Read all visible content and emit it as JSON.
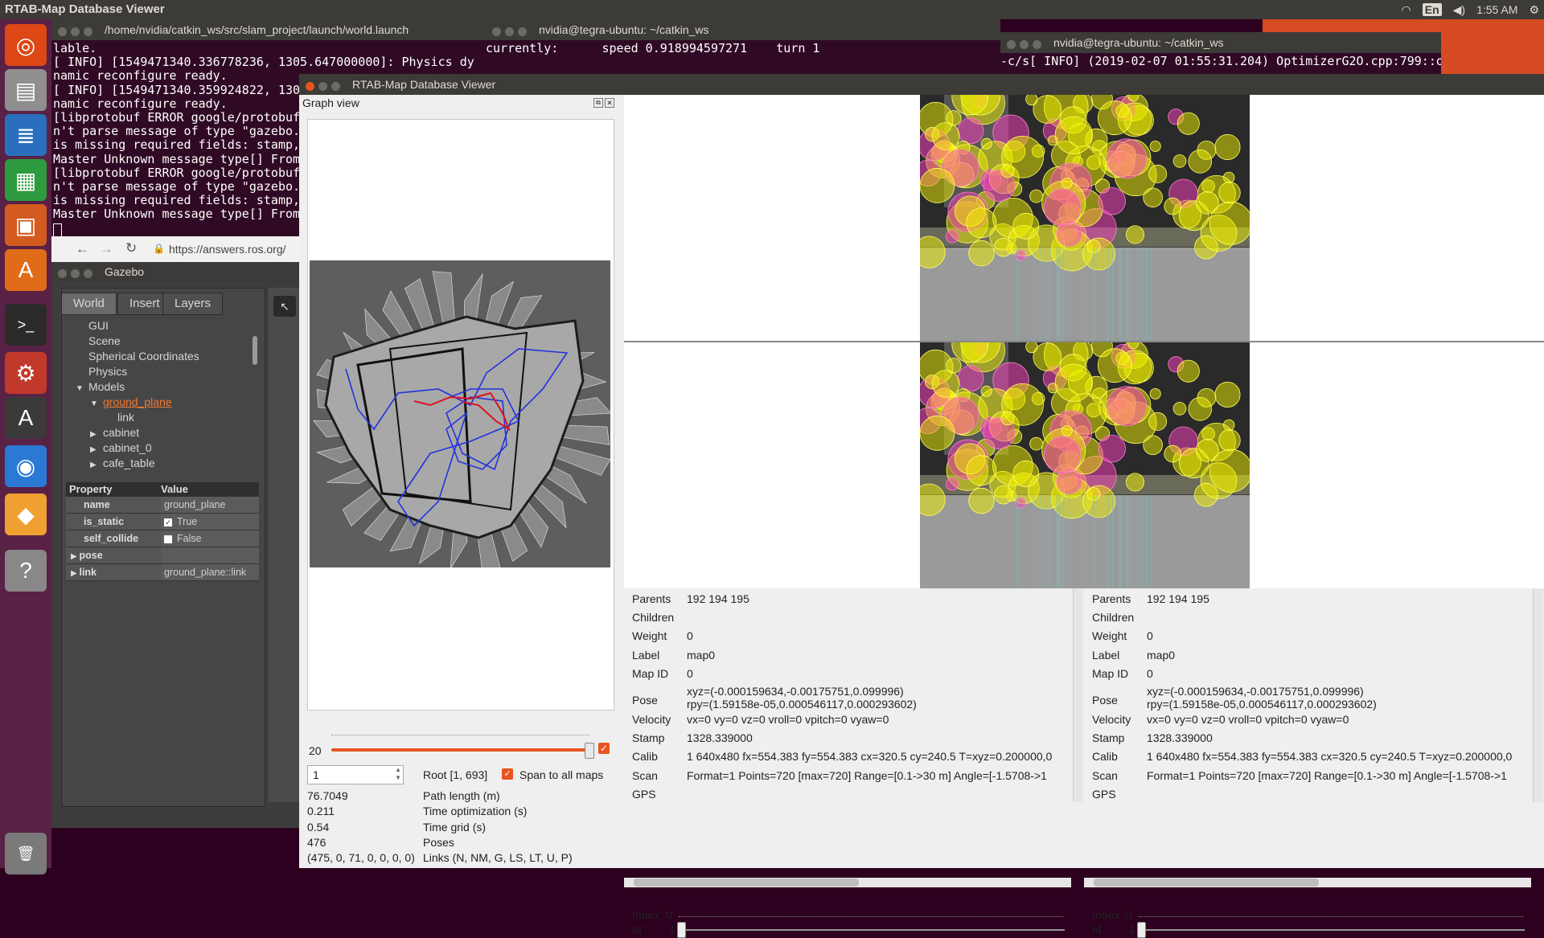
{
  "topbar": {
    "title": "RTAB-Map Database Viewer",
    "wifi_icon": "wifi-icon",
    "keyboard_layout": "En",
    "volume_icon": "volume-icon",
    "time": "1:55 AM",
    "settings_icon": "gear-icon"
  },
  "launcher": {
    "items": [
      {
        "name": "ubuntu-dash",
        "glyph": "◎",
        "color": "#dd4814"
      },
      {
        "name": "files",
        "glyph": "▤",
        "color": "#8f8f8f"
      },
      {
        "name": "writer",
        "glyph": "≣",
        "color": "#2a6fbe"
      },
      {
        "name": "calc",
        "glyph": "▦",
        "color": "#2e9a3e"
      },
      {
        "name": "impress",
        "glyph": "▣",
        "color": "#d45b1f"
      },
      {
        "name": "software-center",
        "glyph": "A",
        "color": "#e06c1a"
      },
      {
        "name": "terminal",
        "glyph": ">_",
        "color": "#2b2b2b"
      },
      {
        "name": "system-settings",
        "glyph": "⚙",
        "color": "#c1392b"
      },
      {
        "name": "software-updater",
        "glyph": "A",
        "color": "#3a3a3a"
      },
      {
        "name": "chromium",
        "glyph": "◉",
        "color": "#2a7ad5"
      },
      {
        "name": "gazebo",
        "glyph": "◆",
        "color": "#f0a030"
      },
      {
        "name": "help",
        "glyph": "?",
        "color": "#888888"
      },
      {
        "name": "trash",
        "glyph": "🗑",
        "color": "#7a7a7a"
      }
    ]
  },
  "term1": {
    "title": "/home/nvidia/catkin_ws/src/slam_project/launch/world.launch",
    "lines": [
      "lable.",
      "[ INFO] [1549471340.336778236, 1305.647000000]: Physics dy",
      "namic reconfigure ready.",
      "[ INFO] [1549471340.359924822, 130",
      "namic reconfigure ready.",
      "[libprotobuf ERROR google/protobuf",
      "n't parse message of type \"gazebo.",
      "is missing required fields: stamp,",
      "Master Unknown message type[] From",
      "[libprotobuf ERROR google/protobuf",
      "n't parse message of type \"gazebo.",
      "is missing required fields: stamp,",
      "Master Unknown message type[] From"
    ]
  },
  "term2": {
    "title": "nvidia@tegra-ubuntu: ~/catkin_ws",
    "line": "currently:      speed 0.918994597271    turn 1"
  },
  "term3": {
    "title": "nvidia@tegra-ubuntu: ~/catkin_ws",
    "line": "-c/s[ INFO] (2019-02-07 01:55:31.204) OptimizerG2O.cpp:799::opti"
  },
  "browser": {
    "url": "https://answers.ros.org/"
  },
  "gazebo": {
    "title": "Gazebo",
    "tabs": [
      "World",
      "Insert",
      "Layers"
    ],
    "tree": [
      {
        "label": "GUI",
        "indent": 1,
        "arrow": ""
      },
      {
        "label": "Scene",
        "indent": 1,
        "arrow": ""
      },
      {
        "label": "Spherical Coordinates",
        "indent": 1,
        "arrow": ""
      },
      {
        "label": "Physics",
        "indent": 1,
        "arrow": ""
      },
      {
        "label": "Models",
        "indent": 1,
        "arrow": "▼"
      },
      {
        "label": "ground_plane",
        "indent": 2,
        "arrow": "▼",
        "highlight": true
      },
      {
        "label": "link",
        "indent": 3,
        "arrow": ""
      },
      {
        "label": "cabinet",
        "indent": 2,
        "arrow": "▶"
      },
      {
        "label": "cabinet_0",
        "indent": 2,
        "arrow": "▶"
      },
      {
        "label": "cafe_table",
        "indent": 2,
        "arrow": "▶"
      }
    ],
    "property_header": "Property",
    "value_header": "Value",
    "properties": [
      {
        "k": "name",
        "v": "ground_plane",
        "check": false
      },
      {
        "k": "is_static",
        "v": "True",
        "check": true,
        "checked": true
      },
      {
        "k": "self_collide",
        "v": "False",
        "check": true,
        "checked": false
      },
      {
        "k": "pose",
        "v": "",
        "arrow": true
      },
      {
        "k": "link",
        "v": "ground_plane::link",
        "arrow": true
      }
    ]
  },
  "rtab": {
    "title": "RTAB-Map Database Viewer",
    "graph_view_title": "Graph view",
    "slider_value": "20",
    "root_input": "1",
    "root_label": "Root [1, 693]",
    "span_label": "Span to all maps",
    "stats": [
      {
        "v": "76.7049",
        "k": "Path length (m)"
      },
      {
        "v": "0.211",
        "k": "Time optimization (s)"
      },
      {
        "v": "0.54",
        "k": "Time grid (s)"
      },
      {
        "v": "476",
        "k": "Poses"
      },
      {
        "v": "(475, 0, 71, 0, 0, 0, 0)",
        "k": "Links (N, NM, G, LS, LT, U, P)"
      }
    ],
    "left_info": {
      "rows": [
        {
          "k": "Parents",
          "v": "192 194 195"
        },
        {
          "k": "Children",
          "v": ""
        },
        {
          "k": "Weight",
          "v": "0"
        },
        {
          "k": "Label",
          "v": "map0"
        },
        {
          "k": "Map ID",
          "v": "0"
        },
        {
          "k": "Pose",
          "v": "xyz=(-0.000159634,-0.00175751,0.099996)",
          "v2": "rpy=(1.59158e-05,0.000546117,0.000293602)"
        },
        {
          "k": "Velocity",
          "v": "vx=0 vy=0 vz=0 vroll=0 vpitch=0 vyaw=0"
        },
        {
          "k": "Stamp",
          "v": "1328.339000"
        },
        {
          "k": "Calib",
          "v": "1 640x480 fx=554.383 fy=554.383 cx=320.5 cy=240.5 T=xyz=0.200000,0"
        },
        {
          "k": "Scan",
          "v": "Format=1 Points=720 [max=720] Range=[0.1->30 m] Angle=[-1.5708->1"
        },
        {
          "k": "GPS",
          "v": ""
        }
      ],
      "index_label": "Index :",
      "index_value": "0",
      "id_label": "Id :",
      "id_value": "1"
    },
    "right_info": {
      "rows": [
        {
          "k": "Parents",
          "v": "192 194 195"
        },
        {
          "k": "Children",
          "v": ""
        },
        {
          "k": "Weight",
          "v": "0"
        },
        {
          "k": "Label",
          "v": "map0"
        },
        {
          "k": "Map ID",
          "v": "0"
        },
        {
          "k": "Pose",
          "v": "xyz=(-0.000159634,-0.00175751,0.099996)",
          "v2": "rpy=(1.59158e-05,0.000546117,0.000293602)"
        },
        {
          "k": "Velocity",
          "v": "vx=0 vy=0 vz=0 vroll=0 vpitch=0 vyaw=0"
        },
        {
          "k": "Stamp",
          "v": "1328.339000"
        },
        {
          "k": "Calib",
          "v": "1 640x480 fx=554.383 fy=554.383 cx=320.5 cy=240.5 T=xyz=0.200000,0"
        },
        {
          "k": "Scan",
          "v": "Format=1 Points=720 [max=720] Range=[0.1->30 m] Angle=[-1.5708->1"
        },
        {
          "k": "GPS",
          "v": ""
        }
      ],
      "index_label": "Index :",
      "index_value": "0",
      "id_label": "Id :",
      "id_value": "1"
    }
  },
  "colors": {
    "terminal_bg": "#300a24",
    "ubuntu_orange": "#e95420",
    "feature_yellow": "#f0f000",
    "feature_magenta": "#ff40c0"
  }
}
